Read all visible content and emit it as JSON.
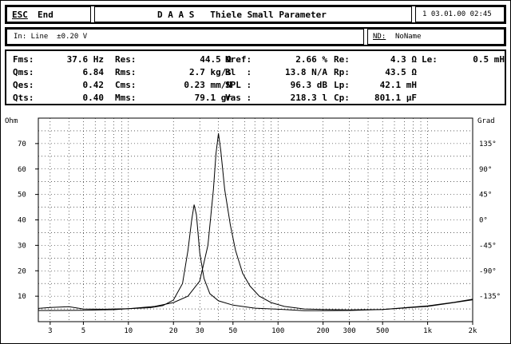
{
  "header": {
    "esc_label": "ESC",
    "end_label": "End",
    "title": "D A A S   Thiele Small Parameter",
    "datetime": "1 03.01.00 02:45"
  },
  "input_bar": {
    "input_text": "In: Line  ±0.20 V",
    "nd_label": "ND:",
    "name_value": "NoName"
  },
  "params": [
    {
      "label": "Fms:",
      "value": "37.6 Hz"
    },
    {
      "label": "Qms:",
      "value": "6.84"
    },
    {
      "label": "Qes:",
      "value": "0.42"
    },
    {
      "label": "Qts:",
      "value": "0.40"
    },
    {
      "label": "Res:",
      "value": "44.5 Ω"
    },
    {
      "label": "Rms:",
      "value": "2.7 kg/s"
    },
    {
      "label": "Cms:",
      "value": "0.23 mm/N"
    },
    {
      "label": "Mms:",
      "value": "79.1 gr"
    },
    {
      "label": "Nref:",
      "value": "2.66 %"
    },
    {
      "label": "Bl  :",
      "value": "13.8 N/A"
    },
    {
      "label": "SPL :",
      "value": "96.3 dB"
    },
    {
      "label": "Vas :",
      "value": "218.3 l"
    },
    {
      "label": "Re:",
      "value": "4.3 Ω"
    },
    {
      "label": "Rp:",
      "value": "43.5 Ω"
    },
    {
      "label": "Lp:",
      "value": "42.1 mH"
    },
    {
      "label": "Cp:",
      "value": "801.1 µF"
    },
    {
      "label": "Le:",
      "value": "0.5 mH"
    }
  ],
  "chart_data": {
    "type": "line",
    "xscale": "log",
    "xlim": [
      2.5,
      2000
    ],
    "ylim_left": [
      0,
      80
    ],
    "ylim_right": [
      -180,
      180
    ],
    "ylabel_left": "Ohm",
    "ylabel_right": "Grad",
    "x_ticks": [
      {
        "v": 3,
        "label": "3"
      },
      {
        "v": 5,
        "label": "5"
      },
      {
        "v": 10,
        "label": "10"
      },
      {
        "v": 20,
        "label": "20"
      },
      {
        "v": 30,
        "label": "30"
      },
      {
        "v": 50,
        "label": "50"
      },
      {
        "v": 100,
        "label": "100"
      },
      {
        "v": 200,
        "label": "200"
      },
      {
        "v": 300,
        "label": "300"
      },
      {
        "v": 500,
        "label": "500"
      },
      {
        "v": 1000,
        "label": "1k"
      },
      {
        "v": 2000,
        "label": "2k"
      }
    ],
    "y_ticks_left": [
      {
        "v": 10,
        "label": "10"
      },
      {
        "v": 20,
        "label": "20"
      },
      {
        "v": 30,
        "label": "30"
      },
      {
        "v": 40,
        "label": "40"
      },
      {
        "v": 50,
        "label": "50"
      },
      {
        "v": 60,
        "label": "60"
      },
      {
        "v": 70,
        "label": "70"
      }
    ],
    "y_ticks_right": [
      {
        "v": 135,
        "label": "135°"
      },
      {
        "v": 90,
        "label": "90°"
      },
      {
        "v": 45,
        "label": "45°"
      },
      {
        "v": 0,
        "label": "0°"
      },
      {
        "v": -45,
        "label": "-45°"
      },
      {
        "v": -90,
        "label": "-90°"
      },
      {
        "v": -135,
        "label": "-135°"
      }
    ],
    "grid": true,
    "series": [
      {
        "values": [
          [
            2.5,
            5.2
          ],
          [
            3,
            5.6
          ],
          [
            4,
            5.9
          ],
          [
            5,
            5.0
          ],
          [
            7,
            4.9
          ],
          [
            10,
            5.1
          ],
          [
            14,
            5.5
          ],
          [
            17,
            6.3
          ],
          [
            20,
            8.5
          ],
          [
            23,
            15
          ],
          [
            25,
            28
          ],
          [
            26.5,
            40
          ],
          [
            27.5,
            46
          ],
          [
            28.5,
            42
          ],
          [
            30,
            27
          ],
          [
            32,
            17
          ],
          [
            35,
            11
          ],
          [
            40,
            8.2
          ],
          [
            50,
            6.5
          ],
          [
            70,
            5.3
          ],
          [
            100,
            4.9
          ],
          [
            150,
            4.3
          ],
          [
            200,
            4.3
          ],
          [
            300,
            4.4
          ],
          [
            500,
            4.8
          ],
          [
            1000,
            6.2
          ],
          [
            1500,
            7.6
          ],
          [
            2000,
            8.8
          ]
        ]
      },
      {
        "values": [
          [
            2.5,
            4.4
          ],
          [
            3,
            4.4
          ],
          [
            5,
            4.5
          ],
          [
            8,
            4.7
          ],
          [
            10,
            5.1
          ],
          [
            15,
            6.0
          ],
          [
            20,
            7.5
          ],
          [
            25,
            10
          ],
          [
            30,
            16
          ],
          [
            34,
            30
          ],
          [
            37,
            52
          ],
          [
            38.5,
            66
          ],
          [
            40,
            74
          ],
          [
            41.5,
            67
          ],
          [
            44,
            52
          ],
          [
            48,
            38
          ],
          [
            52,
            28
          ],
          [
            58,
            19
          ],
          [
            65,
            14
          ],
          [
            75,
            10
          ],
          [
            90,
            7.5
          ],
          [
            110,
            6.0
          ],
          [
            150,
            5.0
          ],
          [
            200,
            4.8
          ],
          [
            300,
            4.6
          ],
          [
            500,
            4.8
          ],
          [
            1000,
            6.0
          ],
          [
            1500,
            7.5
          ],
          [
            2000,
            8.6
          ]
        ]
      }
    ]
  }
}
